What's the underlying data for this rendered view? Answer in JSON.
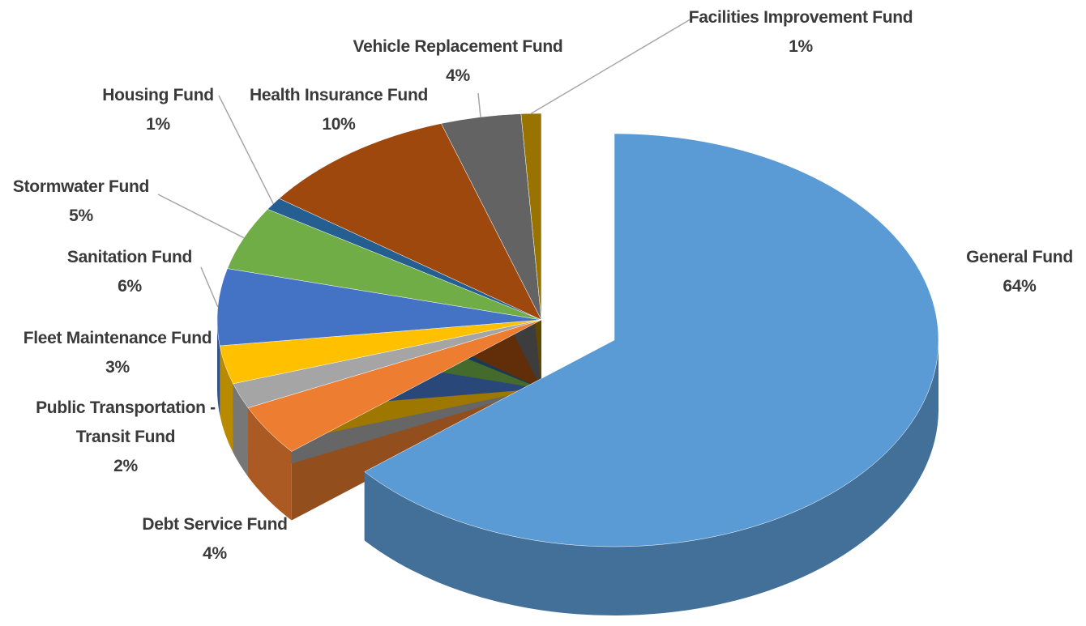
{
  "chart_data": {
    "type": "pie",
    "categories": [
      "General Fund",
      "Debt Service Fund",
      "Public Transportation - Transit Fund",
      "Fleet Maintenance Fund",
      "Sanitation Fund",
      "Stormwater Fund",
      "Housing Fund",
      "Health Insurance Fund",
      "Vehicle Replacement Fund",
      "Facilities Improvement Fund"
    ],
    "values": [
      64,
      4,
      2,
      3,
      6,
      5,
      1,
      10,
      4,
      1
    ],
    "value_labels": [
      "64%",
      "4%",
      "2%",
      "3%",
      "6%",
      "5%",
      "1%",
      "10%",
      "4%",
      "1%"
    ],
    "colors": [
      "#5b9bd5",
      "#ed7d31",
      "#a5a5a5",
      "#ffc000",
      "#4472c4",
      "#70ad47",
      "#255e91",
      "#9e480e",
      "#636363",
      "#997300"
    ]
  }
}
